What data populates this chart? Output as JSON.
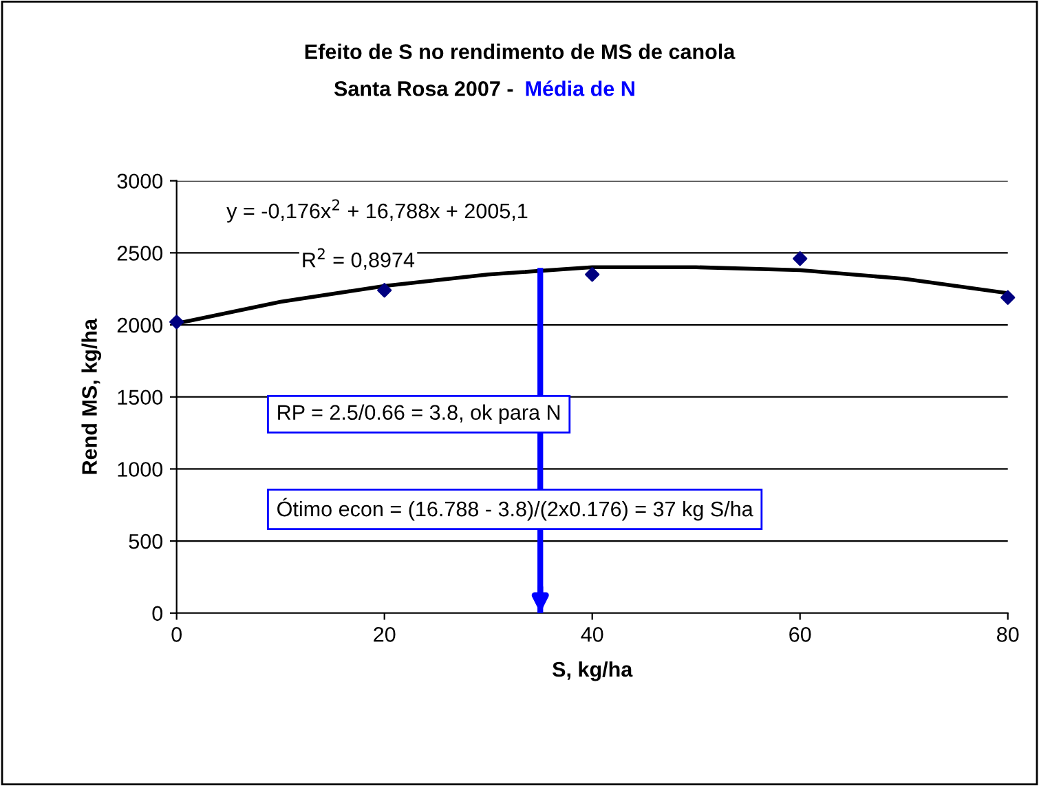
{
  "chart_data": {
    "type": "scatter",
    "title": "Efeito de S no rendimento de MS de canola",
    "subtitle": [
      "Santa Rosa 2007 - ",
      "Média de N"
    ],
    "xlabel": "S, kg/ha",
    "ylabel": "Rend MS, kg/ha",
    "series": [
      {
        "color": "#000080",
        "marker": "diamond",
        "x": [
          0,
          20,
          40,
          60,
          80
        ],
        "values": [
          2020,
          2240,
          2350,
          2460,
          2190
        ]
      },
      {
        "type": "line",
        "color": "#000000",
        "marker": "none",
        "line_style": "solid",
        "x": [
          0,
          10,
          20,
          30,
          40,
          50,
          60,
          70,
          80
        ],
        "values": [
          2010,
          2160,
          2270,
          2350,
          2400,
          2400,
          2380,
          2320,
          2220
        ]
      }
    ],
    "annotations": [
      "y = -0,176x$^{2}$ + 16,788x + 2005,1",
      "R$^{2}$ = 0,8974",
      "RP = 2.5/0.66 = 3.8, ok para N",
      "Ótimo econ = (16.788 - 3.8)/(2x0.176) = 37 kg S/ha"
    ],
    "ref_lines": [
      {
        "axis": "x",
        "value": 35,
        "color": "#0000ff",
        "line_style": "solid"
      }
    ],
    "xlim": [
      0,
      80
    ],
    "xticks": [
      0,
      20,
      40,
      60,
      80
    ],
    "ylim": [
      0,
      3000
    ],
    "yticks": [
      0,
      500,
      1000,
      1500,
      2000,
      2500,
      3000
    ],
    "grid": "y",
    "legend": false
  }
}
